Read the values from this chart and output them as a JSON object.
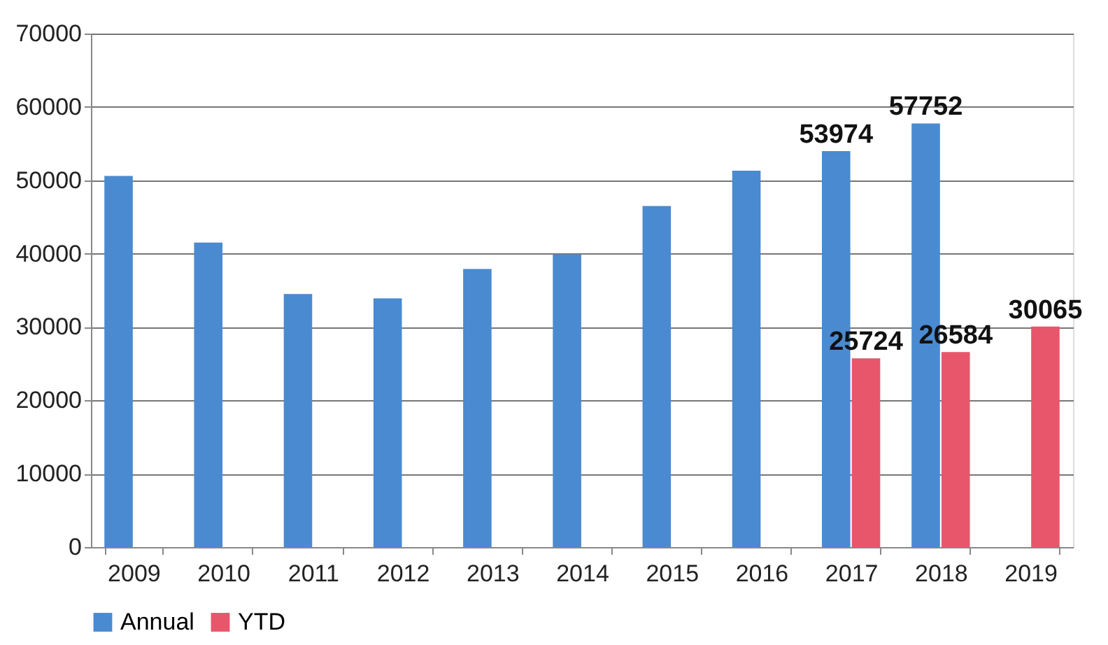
{
  "chart_data": {
    "type": "bar",
    "categories": [
      "2009",
      "2010",
      "2011",
      "2012",
      "2013",
      "2014",
      "2015",
      "2016",
      "2017",
      "2018",
      "2019"
    ],
    "series": [
      {
        "name": "Annual",
        "color": "#4a8ad0",
        "values": [
          50600,
          41500,
          34500,
          33900,
          37900,
          39900,
          46500,
          51300,
          53974,
          57752,
          null
        ],
        "value_labels": [
          null,
          null,
          null,
          null,
          null,
          null,
          null,
          null,
          "53974",
          "57752",
          null
        ]
      },
      {
        "name": "YTD",
        "color": "#e8566c",
        "values": [
          null,
          null,
          null,
          null,
          null,
          null,
          null,
          null,
          25724,
          26584,
          30065
        ],
        "value_labels": [
          null,
          null,
          null,
          null,
          null,
          null,
          null,
          null,
          "25724",
          "26584",
          "30065"
        ]
      }
    ],
    "ylim": [
      0,
      70000
    ],
    "yticks": [
      0,
      10000,
      20000,
      30000,
      40000,
      50000,
      60000,
      70000
    ],
    "grid": "y",
    "legend": "bottom"
  }
}
